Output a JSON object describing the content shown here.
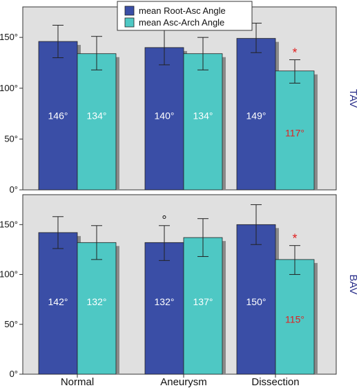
{
  "chart_data": {
    "type": "bar",
    "categories": [
      "Normal",
      "Aneurysm",
      "Dissection"
    ],
    "legend": {
      "placement": "top-center",
      "entries": [
        "mean Root-Asc Angle",
        "mean Asc-Arch Angle"
      ]
    },
    "ylim": [
      0,
      180
    ],
    "y_ticks": [
      "0°",
      "50°",
      "100°",
      "150°"
    ],
    "colors": {
      "root_asc": "#3a4ea6",
      "asc_arch": "#4ec8c4",
      "panel_bg": "#e0e0e0",
      "panel_label": "#2a2f8a",
      "significance": "#e02020"
    },
    "panels": [
      {
        "label": "TAV",
        "series": [
          {
            "name": "mean Root-Asc Angle",
            "values": [
              146,
              140,
              149
            ],
            "err_low": [
              130,
              123,
              135
            ],
            "err_high": [
              162,
              158,
              164
            ],
            "labels": [
              "146°",
              "140°",
              "149°"
            ],
            "label_colors": [
              "#ffffff",
              "#ffffff",
              "#ffffff"
            ]
          },
          {
            "name": "mean Asc-Arch Angle",
            "values": [
              134,
              134,
              117
            ],
            "err_low": [
              118,
              118,
              105
            ],
            "err_high": [
              151,
              150,
              128
            ],
            "labels": [
              "134°",
              "134°",
              "117°"
            ],
            "label_colors": [
              "#ffffff",
              "#ffffff",
              "#e02020"
            ]
          }
        ],
        "markers": [
          {
            "text": "°",
            "category": 1,
            "series": 0,
            "color": "#111111"
          },
          {
            "text": "*",
            "category": 2,
            "series": 1,
            "color": "#e02020"
          }
        ]
      },
      {
        "label": "BAV",
        "series": [
          {
            "name": "mean Root-Asc Angle",
            "values": [
              142,
              132,
              150
            ],
            "err_low": [
              126,
              114,
              130
            ],
            "err_high": [
              158,
              149,
              170
            ],
            "labels": [
              "142°",
              "132°",
              "150°"
            ],
            "label_colors": [
              "#ffffff",
              "#ffffff",
              "#ffffff"
            ]
          },
          {
            "name": "mean Asc-Arch Angle",
            "values": [
              132,
              137,
              115
            ],
            "err_low": [
              115,
              118,
              100
            ],
            "err_high": [
              149,
              156,
              129
            ],
            "labels": [
              "132°",
              "137°",
              "115°"
            ],
            "label_colors": [
              "#ffffff",
              "#ffffff",
              "#e02020"
            ]
          }
        ],
        "markers": [
          {
            "text": "°",
            "category": 1,
            "series": 0,
            "color": "#111111"
          },
          {
            "text": "*",
            "category": 2,
            "series": 1,
            "color": "#e02020"
          }
        ]
      }
    ]
  }
}
